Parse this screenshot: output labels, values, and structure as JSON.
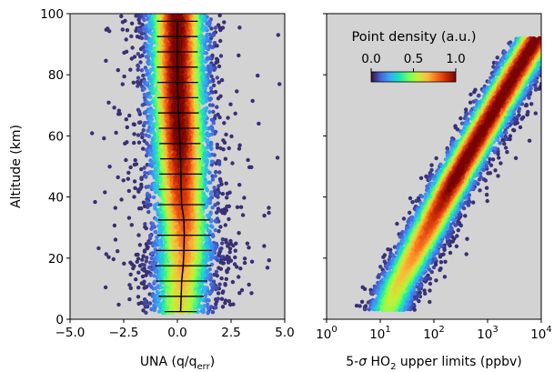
{
  "colors": {
    "panel_bg": "#d3d3d3",
    "colormap": [
      "#30123b",
      "#4662d7",
      "#36aaf9",
      "#1ae4b6",
      "#72fe5e",
      "#c8ef34",
      "#faba39",
      "#f66b19",
      "#ca2a04",
      "#7a0403"
    ],
    "profile_line": "#000000",
    "errorbar": "#000000"
  },
  "chart_data": [
    {
      "type": "scatter",
      "description_role": "left panel: UNA vs altitude, density-colored points with binned median profile",
      "xlabel": "UNA (q/q",
      "xlabel_sub": "err",
      "xlabel_tail": ")",
      "ylabel": "Altitude (km)",
      "xlim": [
        -5.0,
        5.0
      ],
      "ylim": [
        0,
        100
      ],
      "xticks": [
        -5.0,
        -2.5,
        0.0,
        2.5,
        5.0
      ],
      "xtick_labels": [
        "−5.0",
        "−2.5",
        "0.0",
        "2.5",
        "5.0"
      ],
      "yticks": [
        0,
        20,
        40,
        60,
        80,
        100
      ],
      "ytick_labels": [
        "0",
        "20",
        "40",
        "60",
        "80",
        "100"
      ],
      "color_encoding": "point density",
      "binned_profile": {
        "altitude": [
          2.5,
          7.5,
          12.5,
          17.5,
          22.5,
          27.5,
          32.5,
          37.5,
          42.5,
          47.5,
          52.5,
          57.5,
          62.5,
          67.5,
          72.5,
          77.5,
          82.5,
          87.5,
          92.5,
          97.5
        ],
        "median": [
          0.15,
          0.18,
          0.2,
          0.27,
          0.3,
          0.32,
          0.3,
          0.2,
          0.18,
          0.16,
          0.15,
          0.12,
          0.08,
          0.05,
          0.02,
          0.01,
          0.0,
          0.0,
          0.0,
          0.0
        ],
        "spread": [
          0.75,
          1.05,
          1.2,
          1.3,
          1.3,
          1.25,
          1.2,
          1.1,
          1.05,
          1.0,
          0.95,
          0.95,
          0.95,
          0.95,
          0.95,
          0.95,
          0.95,
          0.95,
          0.95,
          0.95
        ]
      }
    },
    {
      "type": "scatter",
      "description_role": "right panel: 5-sigma HO2 upper limits vs altitude, density-colored points",
      "xlabel_pre": "5-",
      "xlabel_sigma": "σ",
      "xlabel_mid": " HO",
      "xlabel_sub": "2",
      "xlabel_tail": " upper limits (ppbv)",
      "xscale": "log",
      "xlim": [
        1,
        10000
      ],
      "ylim": [
        0,
        100
      ],
      "xticks": [
        1,
        10,
        100,
        1000,
        10000
      ],
      "xtick_base": "10",
      "xtick_exponents": [
        "0",
        "1",
        "2",
        "3",
        "4"
      ],
      "color_encoding": "point density",
      "centerline": {
        "altitude": [
          0,
          10,
          20,
          30,
          40,
          50,
          60,
          70,
          80,
          90
        ],
        "upper_limit_ppbv": [
          12,
          20,
          40,
          80,
          160,
          330,
          700,
          1500,
          3200,
          7000
        ]
      }
    }
  ],
  "colorbar": {
    "title": "Point density (a.u.)",
    "ticks": [
      0.0,
      0.5,
      1.0
    ],
    "tick_labels": [
      "0.0",
      "0.5",
      "1.0"
    ],
    "range": [
      0.0,
      1.0
    ]
  }
}
